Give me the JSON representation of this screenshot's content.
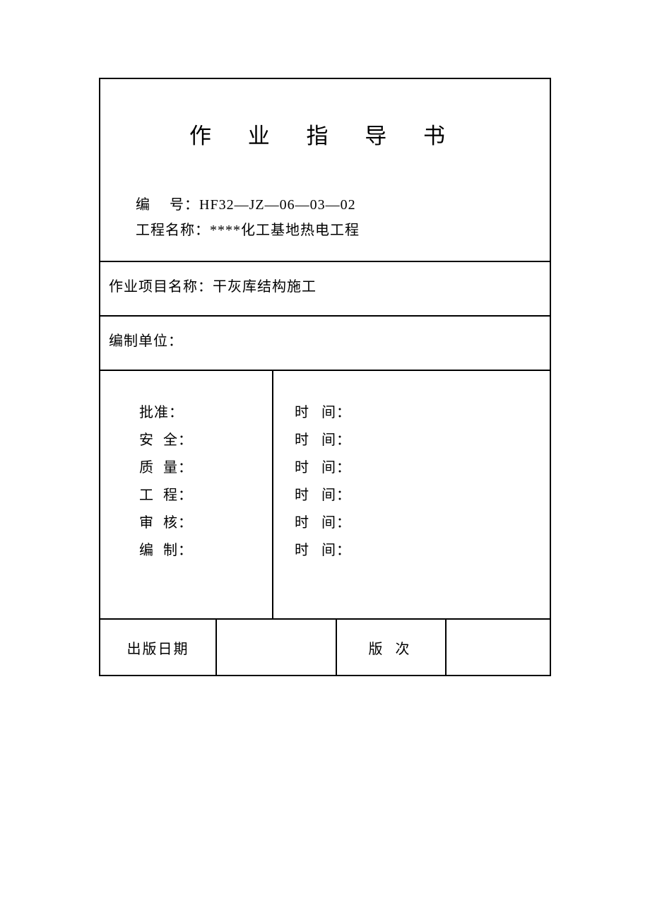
{
  "title": "作 业 指 导 书",
  "serial": {
    "label": "编",
    "label2": "号：",
    "value": "HF32—JZ—06—03—02"
  },
  "projectName": {
    "label": "工程名称：",
    "value": "****化工基地热电工程"
  },
  "workItem": {
    "label": "作业项目名称：",
    "value": "干灰库结构施工"
  },
  "unit": {
    "label": "编制单位："
  },
  "approval": {
    "rows": [
      {
        "left": "批准：",
        "right": "时",
        "right2": "间："
      },
      {
        "left": "安",
        "left2": "全：",
        "right": "时",
        "right2": "间："
      },
      {
        "left": "质",
        "left2": "量：",
        "right": "时",
        "right2": "间："
      },
      {
        "left": "工",
        "left2": "程：",
        "right": "时",
        "right2": "间："
      },
      {
        "left": "审",
        "left2": "核：",
        "right": "时",
        "right2": "间："
      },
      {
        "left": "编",
        "left2": "制：",
        "right": "时",
        "right2": "间："
      }
    ]
  },
  "footer": {
    "publishDate": "出版日期",
    "version": "版",
    "version2": "次"
  },
  "colors": {
    "border": "#000000",
    "background": "#ffffff",
    "text": "#000000"
  }
}
